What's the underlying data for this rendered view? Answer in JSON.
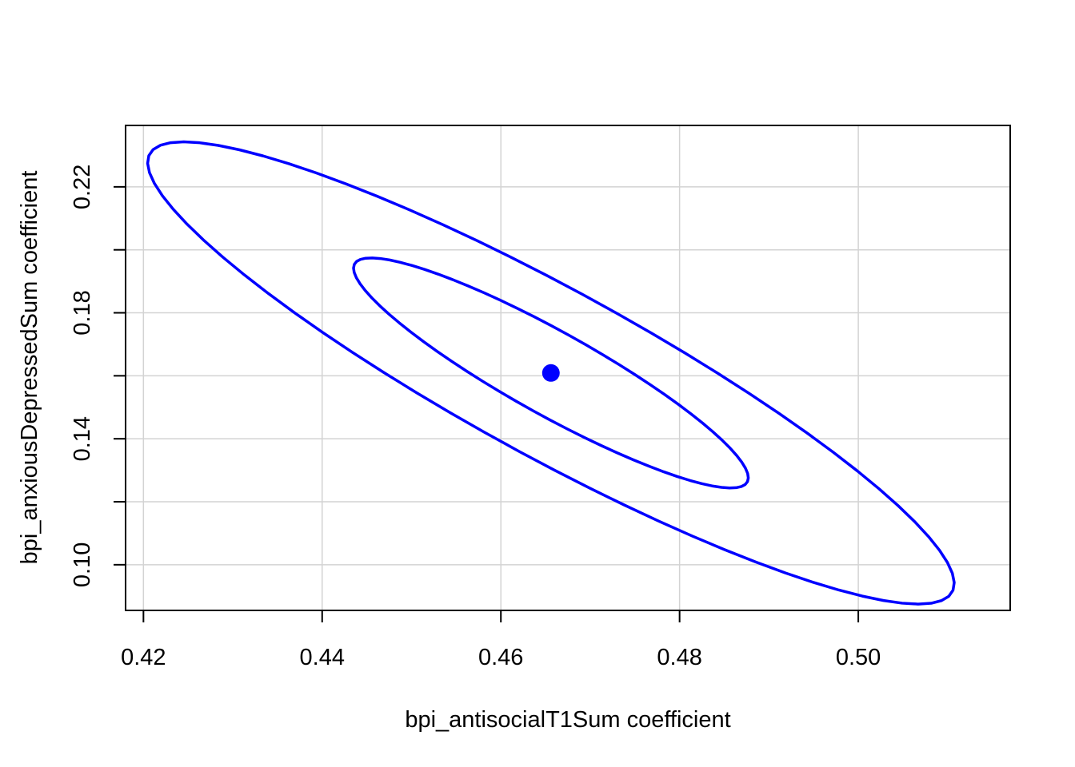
{
  "chart_data": {
    "type": "scatter",
    "xlabel": "bpi_antisocialT1Sum coefficient",
    "ylabel": "bpi_anxiousDepressedSum coefficient",
    "xlim": [
      0.418,
      0.517
    ],
    "ylim": [
      0.0855,
      0.2395
    ],
    "x_ticks": [
      "0.42",
      "0.44",
      "0.46",
      "0.48",
      "0.50"
    ],
    "x_tick_values": [
      0.42,
      0.44,
      0.46,
      0.48,
      0.5
    ],
    "y_ticks": [
      "0.10",
      "0.14",
      "0.18",
      "0.22"
    ],
    "y_tick_values": [
      0.1,
      0.14,
      0.18,
      0.22
    ],
    "y_grid_values": [
      0.1,
      0.12,
      0.14,
      0.16,
      0.18,
      0.2,
      0.22
    ],
    "grid": true,
    "point": {
      "x": 0.4656,
      "y": 0.1609
    },
    "ellipses": [
      {
        "name": "inner",
        "center": [
          0.4656,
          0.1609
        ],
        "semi_major_x": 0.022,
        "semi_major_y": -0.0345,
        "semi_minor_x": 0.002,
        "semi_minor_y": 0.012
      },
      {
        "name": "outer",
        "center": [
          0.4656,
          0.1609
        ],
        "semi_major_x": 0.045,
        "semi_major_y": -0.069,
        "semi_minor_x": 0.0035,
        "semi_minor_y": 0.025
      }
    ],
    "colors": {
      "series": "#0000ff",
      "grid": "#d3d3d3",
      "axis": "#000000"
    }
  }
}
